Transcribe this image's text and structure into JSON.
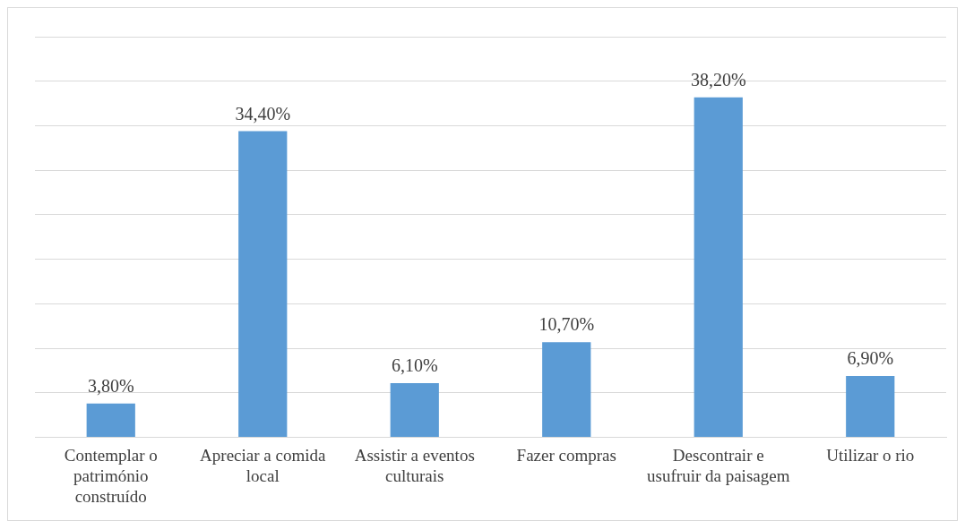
{
  "chart_data": {
    "type": "bar",
    "categories": [
      "Contemplar o património construído",
      "Apreciar a comida local",
      "Assistir a eventos culturais",
      "Fazer compras",
      "Descontrair e usufruir da paisagem",
      "Utilizar o rio"
    ],
    "values": [
      3.8,
      34.4,
      6.1,
      10.7,
      38.2,
      6.9
    ],
    "value_labels": [
      "3,80%",
      "34,40%",
      "6,10%",
      "10,70%",
      "38,20%",
      "6,90%"
    ],
    "color": "#5b9bd5",
    "ylim": [
      0,
      45
    ],
    "yticks": [
      {
        "value": 0,
        "label": null
      },
      {
        "value": 5,
        "label": null
      },
      {
        "value": 10,
        "label": null
      },
      {
        "value": 15,
        "label": null
      },
      {
        "value": 20,
        "label": null
      },
      {
        "value": 25,
        "label": null
      },
      {
        "value": 30,
        "label": null
      },
      {
        "value": 35,
        "label": null
      },
      {
        "value": 40,
        "label": null
      },
      {
        "value": 45,
        "label": null
      }
    ],
    "tick_labels": "x",
    "grid": "y",
    "legend": false
  }
}
